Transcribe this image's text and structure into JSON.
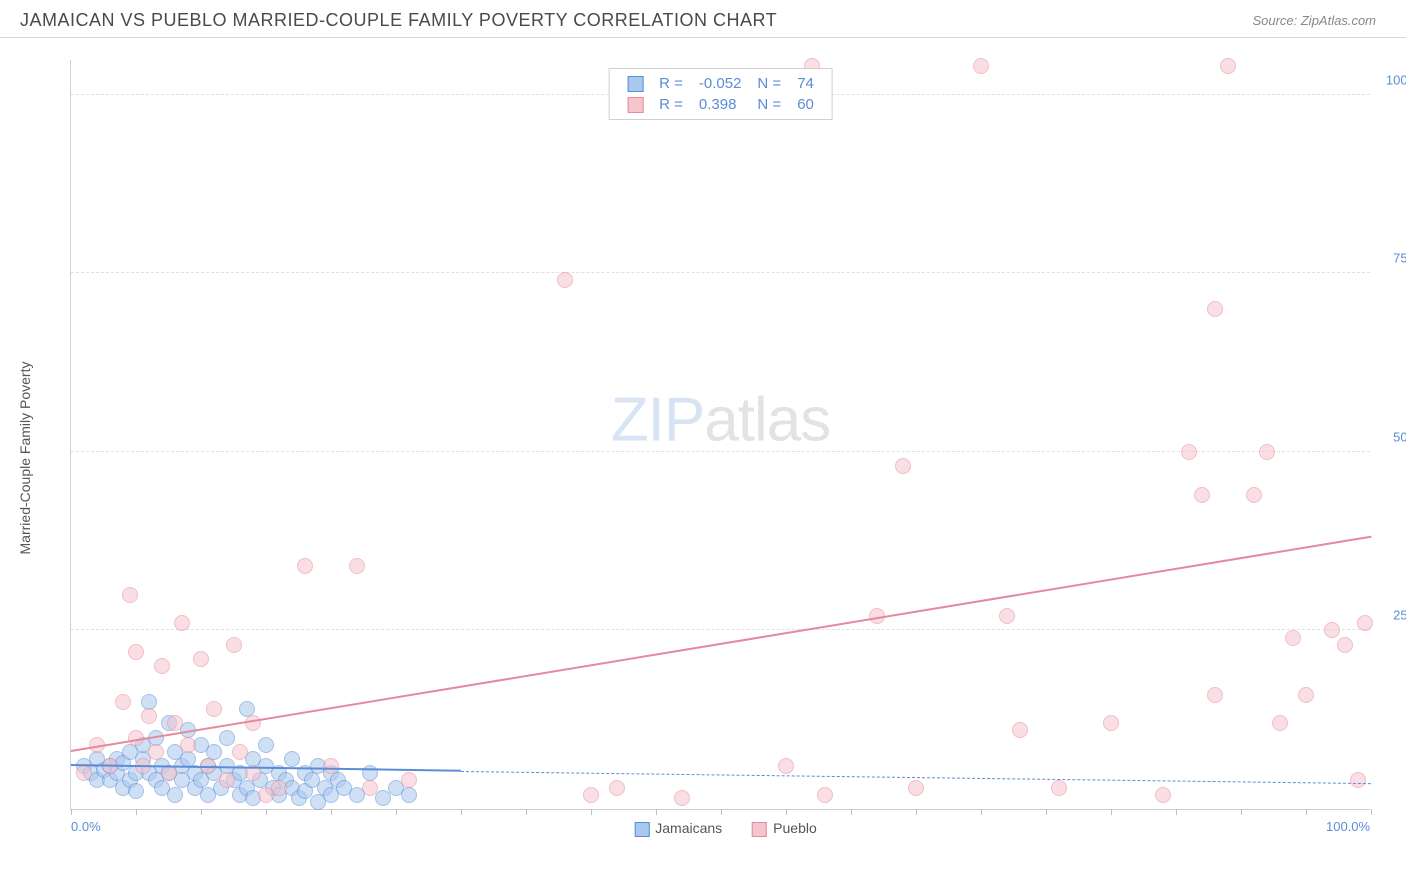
{
  "header": {
    "title": "JAMAICAN VS PUEBLO MARRIED-COUPLE FAMILY POVERTY CORRELATION CHART",
    "source": "Source: ZipAtlas.com"
  },
  "chart": {
    "type": "scatter",
    "y_axis_title": "Married-Couple Family Poverty",
    "watermark_a": "ZIP",
    "watermark_b": "atlas",
    "background_color": "#ffffff",
    "grid_color": "#e0e0e0",
    "axis_line_color": "#d0d0d0",
    "label_color": "#5b8dd6",
    "xlim": [
      0,
      100
    ],
    "ylim": [
      0,
      105
    ],
    "x_major_ticks": [
      0,
      100
    ],
    "x_major_labels": [
      "0.0%",
      "100.0%"
    ],
    "x_minor_tick_step": 5,
    "y_ticks": [
      25,
      50,
      75,
      100
    ],
    "y_labels": [
      "25.0%",
      "50.0%",
      "75.0%",
      "100.0%"
    ],
    "point_radius": 8,
    "point_opacity": 0.55,
    "series": [
      {
        "name": "Jamaicans",
        "color_fill": "#a9c8ee",
        "color_stroke": "#5b8dd6",
        "r_value": "-0.052",
        "n_value": "74",
        "trend": {
          "x1": 0,
          "y1": 6,
          "x2": 30,
          "y2": 5.2,
          "solid": true
        },
        "trend_ext": {
          "x1": 30,
          "y1": 5.2,
          "x2": 100,
          "y2": 3.5
        },
        "points": [
          [
            1,
            6
          ],
          [
            1.5,
            5
          ],
          [
            2,
            7
          ],
          [
            2,
            4
          ],
          [
            2.5,
            5.5
          ],
          [
            3,
            6
          ],
          [
            3,
            4
          ],
          [
            3.5,
            5
          ],
          [
            3.5,
            7
          ],
          [
            4,
            6.5
          ],
          [
            4,
            3
          ],
          [
            4.5,
            8
          ],
          [
            4.5,
            4
          ],
          [
            5,
            5
          ],
          [
            5,
            2.5
          ],
          [
            5.5,
            7
          ],
          [
            5.5,
            9
          ],
          [
            6,
            15
          ],
          [
            6,
            5
          ],
          [
            6.5,
            4
          ],
          [
            6.5,
            10
          ],
          [
            7,
            6
          ],
          [
            7,
            3
          ],
          [
            7.5,
            12
          ],
          [
            7.5,
            5
          ],
          [
            8,
            8
          ],
          [
            8,
            2
          ],
          [
            8.5,
            6
          ],
          [
            8.5,
            4
          ],
          [
            9,
            7
          ],
          [
            9,
            11
          ],
          [
            9.5,
            3
          ],
          [
            9.5,
            5
          ],
          [
            10,
            9
          ],
          [
            10,
            4
          ],
          [
            10.5,
            6
          ],
          [
            10.5,
            2
          ],
          [
            11,
            8
          ],
          [
            11,
            5
          ],
          [
            11.5,
            3
          ],
          [
            12,
            6
          ],
          [
            12,
            10
          ],
          [
            12.5,
            4
          ],
          [
            13,
            5
          ],
          [
            13,
            2
          ],
          [
            13.5,
            14
          ],
          [
            13.5,
            3
          ],
          [
            14,
            7
          ],
          [
            14,
            1.5
          ],
          [
            14.5,
            4
          ],
          [
            15,
            6
          ],
          [
            15,
            9
          ],
          [
            15.5,
            3
          ],
          [
            16,
            5
          ],
          [
            16,
            2
          ],
          [
            16.5,
            4
          ],
          [
            17,
            7
          ],
          [
            17,
            3
          ],
          [
            17.5,
            1.5
          ],
          [
            18,
            5
          ],
          [
            18,
            2.5
          ],
          [
            18.5,
            4
          ],
          [
            19,
            6
          ],
          [
            19,
            1
          ],
          [
            19.5,
            3
          ],
          [
            20,
            5
          ],
          [
            20,
            2
          ],
          [
            20.5,
            4
          ],
          [
            21,
            3
          ],
          [
            22,
            2
          ],
          [
            23,
            5
          ],
          [
            24,
            1.5
          ],
          [
            25,
            3
          ],
          [
            26,
            2
          ]
        ]
      },
      {
        "name": "Pueblo",
        "color_fill": "#f5c4cd",
        "color_stroke": "#e6899e",
        "r_value": "0.398",
        "n_value": "60",
        "trend": {
          "x1": 0,
          "y1": 8,
          "x2": 100,
          "y2": 38,
          "solid": true
        },
        "points": [
          [
            1,
            5
          ],
          [
            2,
            9
          ],
          [
            3,
            6
          ],
          [
            4,
            15
          ],
          [
            4.5,
            30
          ],
          [
            5,
            10
          ],
          [
            5,
            22
          ],
          [
            5.5,
            6
          ],
          [
            6,
            13
          ],
          [
            6.5,
            8
          ],
          [
            7,
            20
          ],
          [
            7.5,
            5
          ],
          [
            8,
            12
          ],
          [
            8.5,
            26
          ],
          [
            9,
            9
          ],
          [
            10,
            21
          ],
          [
            10.5,
            6
          ],
          [
            11,
            14
          ],
          [
            12,
            4
          ],
          [
            12.5,
            23
          ],
          [
            13,
            8
          ],
          [
            14,
            12
          ],
          [
            14,
            5
          ],
          [
            15,
            2
          ],
          [
            16,
            3
          ],
          [
            18,
            34
          ],
          [
            20,
            6
          ],
          [
            22,
            34
          ],
          [
            23,
            3
          ],
          [
            26,
            4
          ],
          [
            38,
            74
          ],
          [
            40,
            2
          ],
          [
            42,
            3
          ],
          [
            47,
            1.5
          ],
          [
            55,
            6
          ],
          [
            57,
            104
          ],
          [
            58,
            2
          ],
          [
            62,
            27
          ],
          [
            64,
            48
          ],
          [
            65,
            3
          ],
          [
            70,
            104
          ],
          [
            72,
            27
          ],
          [
            73,
            11
          ],
          [
            76,
            3
          ],
          [
            80,
            12
          ],
          [
            84,
            2
          ],
          [
            86,
            50
          ],
          [
            87,
            44
          ],
          [
            88,
            70
          ],
          [
            88,
            16
          ],
          [
            89,
            104
          ],
          [
            91,
            44
          ],
          [
            92,
            50
          ],
          [
            93,
            12
          ],
          [
            94,
            24
          ],
          [
            95,
            16
          ],
          [
            97,
            25
          ],
          [
            98,
            23
          ],
          [
            99,
            4
          ],
          [
            99.5,
            26
          ]
        ]
      }
    ],
    "legend_top_labels": {
      "r": "R =",
      "n": "N ="
    },
    "legend_bottom": [
      {
        "label": "Jamaicans",
        "fill": "#a9c8ee",
        "stroke": "#5b8dd6"
      },
      {
        "label": "Pueblo",
        "fill": "#f5c4cd",
        "stroke": "#e6899e"
      }
    ]
  }
}
